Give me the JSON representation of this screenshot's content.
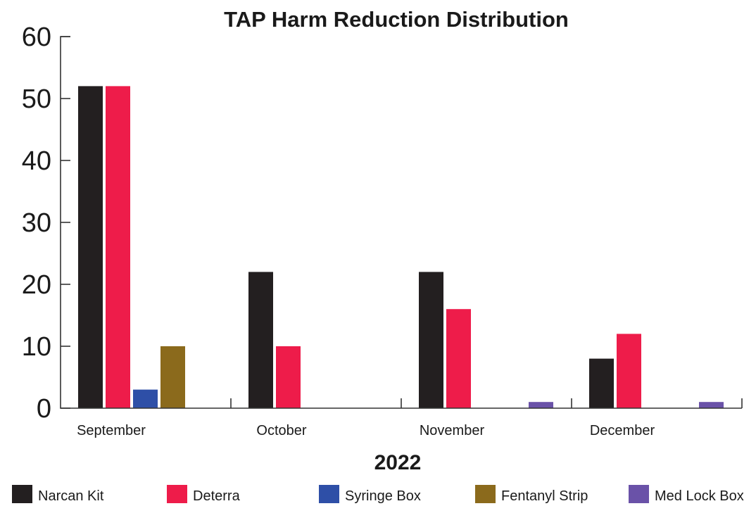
{
  "chart_data": {
    "type": "bar",
    "title": "TAP Harm Reduction Distribution",
    "xlabel": "2022",
    "ylabel": "",
    "categories": [
      "September",
      "October",
      "November",
      "December"
    ],
    "ylim": [
      0,
      60
    ],
    "yticks": [
      0,
      10,
      20,
      30,
      40,
      50,
      60
    ],
    "grid": false,
    "legend_position": "bottom",
    "series": [
      {
        "name": "Narcan Kit",
        "color": "#231f20",
        "values": [
          52,
          22,
          22,
          8
        ]
      },
      {
        "name": "Deterra",
        "color": "#ee1c4a",
        "values": [
          52,
          10,
          16,
          12
        ]
      },
      {
        "name": "Syringe Box",
        "color": "#2e4fa7",
        "values": [
          3,
          0,
          0,
          0
        ]
      },
      {
        "name": "Fentanyl Strip",
        "color": "#8b6a1c",
        "values": [
          10,
          0,
          0,
          0
        ]
      },
      {
        "name": "Med Lock Box",
        "color": "#6a52a8",
        "values": [
          0,
          0,
          1,
          1
        ]
      }
    ]
  }
}
